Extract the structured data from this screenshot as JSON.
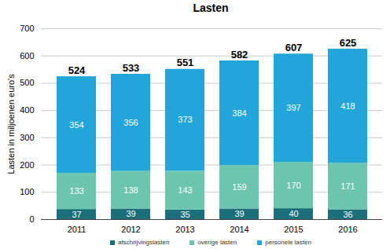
{
  "chart_data": {
    "type": "bar",
    "title": "Lasten",
    "y_label": "Lasten in miljoenen euro's",
    "categories": [
      "2011",
      "2012",
      "2013",
      "2014",
      "2015",
      "2016"
    ],
    "series": [
      {
        "name": "afschrijvingslasten",
        "color": "#1b6f7b",
        "values": [
          37,
          39,
          35,
          39,
          40,
          36
        ]
      },
      {
        "name": "overige lasten",
        "color": "#6cc6ae",
        "values": [
          133,
          138,
          143,
          159,
          170,
          171
        ]
      },
      {
        "name": "personele lasten",
        "color": "#22a6da",
        "values": [
          354,
          356,
          373,
          384,
          397,
          418
        ]
      }
    ],
    "totals": [
      524,
      533,
      551,
      582,
      607,
      625
    ],
    "ylim": [
      0,
      700
    ],
    "yticks": [
      0,
      100,
      200,
      300,
      400,
      500,
      600,
      700
    ],
    "grid": true,
    "stacked": true,
    "data_labels": true,
    "legend": "bottom"
  }
}
